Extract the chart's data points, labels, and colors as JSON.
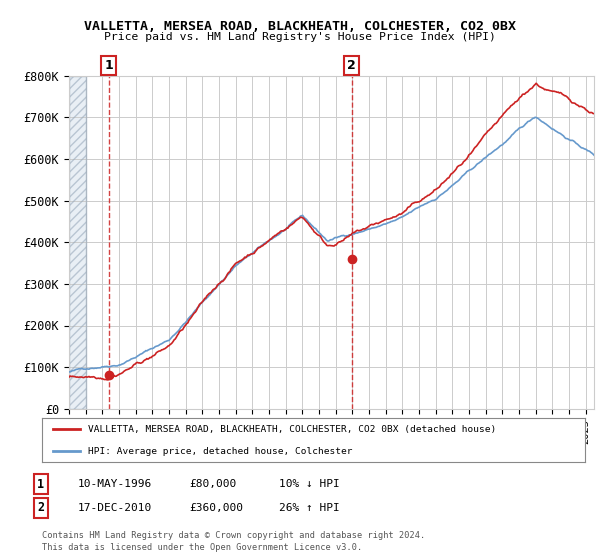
{
  "title": "VALLETTA, MERSEA ROAD, BLACKHEATH, COLCHESTER, CO2 0BX",
  "subtitle": "Price paid vs. HM Land Registry's House Price Index (HPI)",
  "ylabel_values": [
    "£0",
    "£100K",
    "£200K",
    "£300K",
    "£400K",
    "£500K",
    "£600K",
    "£700K",
    "£800K"
  ],
  "yticks": [
    0,
    100000,
    200000,
    300000,
    400000,
    500000,
    600000,
    700000,
    800000
  ],
  "ylim": [
    0,
    800000
  ],
  "xlim_start": 1994,
  "xlim_end": 2025.5,
  "hpi_color": "#6699cc",
  "price_color": "#cc2222",
  "marker1_x": 1996.37,
  "marker1_y": 80000,
  "marker2_x": 2010.96,
  "marker2_y": 360000,
  "sale1_label": "1",
  "sale2_label": "2",
  "legend_line1": "VALLETTA, MERSEA ROAD, BLACKHEATH, COLCHESTER, CO2 0BX (detached house)",
  "legend_line2": "HPI: Average price, detached house, Colchester",
  "table_row1": [
    "1",
    "10-MAY-1996",
    "£80,000",
    "10% ↓ HPI"
  ],
  "table_row2": [
    "2",
    "17-DEC-2010",
    "£360,000",
    "26% ↑ HPI"
  ],
  "footnote1": "Contains HM Land Registry data © Crown copyright and database right 2024.",
  "footnote2": "This data is licensed under the Open Government Licence v3.0.",
  "hatch_color": "#c8d8e8",
  "bg_color": "#ffffff",
  "grid_color": "#cccccc"
}
